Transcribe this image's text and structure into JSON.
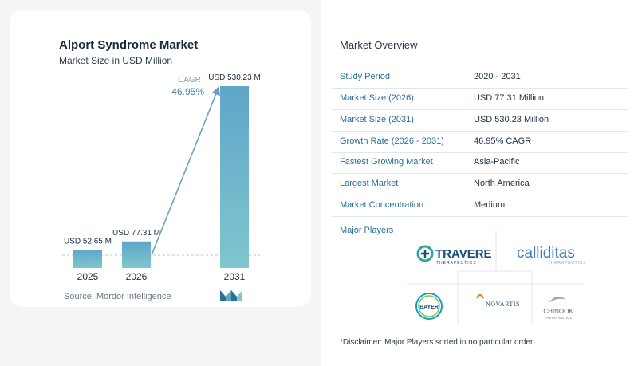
{
  "chart_data": {
    "type": "bar",
    "title": "Alport Syndrome Market",
    "subtitle": "Market Size in USD Million",
    "categories": [
      "2025",
      "2026",
      "2031"
    ],
    "values": [
      52.65,
      77.31,
      530.23
    ],
    "value_labels": [
      "USD 52.65 M",
      "USD 77.31 M",
      "USD 530.23 M"
    ],
    "cagr_label": "CAGR",
    "cagr_value": "46.95%",
    "colors": {
      "bar_light": "#5fa6c9",
      "bar_dark": "#7fc6cf",
      "arrow": "#6a9fbd"
    }
  },
  "source": "Source:  Mordor Intelligence",
  "overview": {
    "title": "Market Overview",
    "rows": [
      {
        "label": "Study Period",
        "value": "2020 - 2031"
      },
      {
        "label": "Market Size (2026)",
        "value": "USD 77.31 Million"
      },
      {
        "label": "Market Size (2031)",
        "value": "USD 530.23 Million"
      },
      {
        "label": "Growth Rate (2026 - 2031)",
        "value": "46.95% CAGR"
      },
      {
        "label": "Fastest Growing Market",
        "value": "Asia-Pacific"
      },
      {
        "label": "Largest Market",
        "value": "North America"
      },
      {
        "label": "Market Concentration",
        "value": "Medium"
      }
    ]
  },
  "players": {
    "title": "Major Players",
    "logos": {
      "travere": "TRAVERE",
      "travere_sub": "THERAPEUTICS",
      "calliditas": "calliditas",
      "calliditas_sub": "THERAPEUTICS",
      "bayer": "BAYER",
      "novartis": "NOVARTIS",
      "chinook": "CHINOOK",
      "chinook_sub": "THERAPEUTICS"
    }
  },
  "disclaimer": "*Disclaimer: Major Players sorted in no particular order"
}
